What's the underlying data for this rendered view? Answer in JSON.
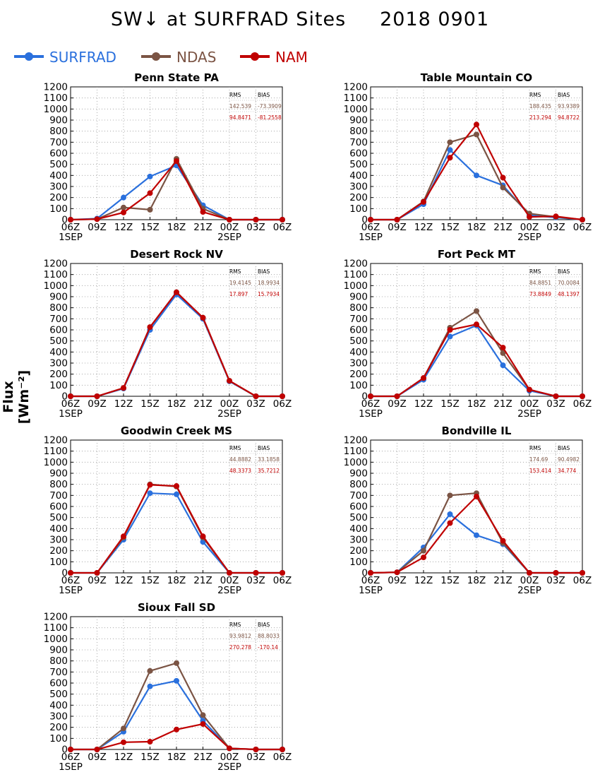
{
  "title": "SW↓ at SURFRAD Sites     2018 0901",
  "ylabel": "Flux [Wm⁻²]",
  "legend": [
    {
      "name": "SURFRAD",
      "color": "#2a70dd"
    },
    {
      "name": "NDAS",
      "color": "#7b5444"
    },
    {
      "name": "NAM",
      "color": "#c00000"
    }
  ],
  "chart_data": [
    {
      "type": "line",
      "title": "Penn State PA",
      "x": [
        "06Z",
        "09Z",
        "12Z",
        "15Z",
        "18Z",
        "21Z",
        "00Z",
        "03Z",
        "06Z"
      ],
      "date_labels": [
        "1SEP",
        "2SEP"
      ],
      "ylim": [
        0,
        1200
      ],
      "yticks": [
        0,
        100,
        200,
        300,
        400,
        500,
        600,
        700,
        800,
        900,
        1000,
        1100,
        1200
      ],
      "grid": true,
      "stats": {
        "headers": [
          "RMS",
          "BIAS"
        ],
        "NDAS": [
          "142.539",
          "-73.3909"
        ],
        "NAM": [
          "94.8471",
          "-81.2558"
        ]
      },
      "series": [
        {
          "name": "SURFRAD",
          "values": [
            0,
            10,
            200,
            390,
            490,
            130,
            0,
            0,
            0
          ]
        },
        {
          "name": "NDAS",
          "values": [
            0,
            5,
            110,
            90,
            550,
            100,
            0,
            0,
            0
          ]
        },
        {
          "name": "NAM",
          "values": [
            0,
            5,
            65,
            240,
            530,
            70,
            0,
            0,
            0
          ]
        }
      ]
    },
    {
      "type": "line",
      "title": "Table Mountain CO",
      "x": [
        "06Z",
        "09Z",
        "12Z",
        "15Z",
        "18Z",
        "21Z",
        "00Z",
        "03Z",
        "06Z"
      ],
      "date_labels": [
        "1SEP",
        "2SEP"
      ],
      "ylim": [
        0,
        1200
      ],
      "yticks": [
        0,
        100,
        200,
        300,
        400,
        500,
        600,
        700,
        800,
        900,
        1000,
        1100,
        1200
      ],
      "grid": true,
      "stats": {
        "headers": [
          "RMS",
          "BIAS"
        ],
        "NDAS": [
          "188.435",
          "93.9389"
        ],
        "NAM": [
          "213.294",
          "94.8722"
        ]
      },
      "series": [
        {
          "name": "SURFRAD",
          "values": [
            0,
            0,
            140,
            630,
            400,
            310,
            40,
            20,
            0
          ]
        },
        {
          "name": "NDAS",
          "values": [
            0,
            0,
            165,
            700,
            770,
            290,
            55,
            25,
            0
          ]
        },
        {
          "name": "NAM",
          "values": [
            0,
            0,
            160,
            560,
            860,
            380,
            25,
            30,
            0
          ]
        }
      ]
    },
    {
      "type": "line",
      "title": "Desert Rock NV",
      "x": [
        "06Z",
        "09Z",
        "12Z",
        "15Z",
        "18Z",
        "21Z",
        "00Z",
        "03Z",
        "06Z"
      ],
      "date_labels": [
        "1SEP",
        "2SEP"
      ],
      "ylim": [
        0,
        1200
      ],
      "yticks": [
        0,
        100,
        200,
        300,
        400,
        500,
        600,
        700,
        800,
        900,
        1000,
        1100,
        1200
      ],
      "grid": true,
      "stats": {
        "headers": [
          "RMS",
          "BIAS"
        ],
        "NDAS": [
          "19.4145",
          "18.9934"
        ],
        "NAM": [
          "17.897",
          "15.7934"
        ]
      },
      "series": [
        {
          "name": "SURFRAD",
          "values": [
            0,
            0,
            70,
            600,
            920,
            700,
            135,
            0,
            0
          ]
        },
        {
          "name": "NDAS",
          "values": [
            0,
            0,
            75,
            625,
            940,
            710,
            140,
            0,
            0
          ]
        },
        {
          "name": "NAM",
          "values": [
            0,
            0,
            75,
            625,
            940,
            710,
            140,
            0,
            0
          ]
        }
      ]
    },
    {
      "type": "line",
      "title": "Fort Peck MT",
      "x": [
        "06Z",
        "09Z",
        "12Z",
        "15Z",
        "18Z",
        "21Z",
        "00Z",
        "03Z",
        "06Z"
      ],
      "date_labels": [
        "1SEP",
        "2SEP"
      ],
      "ylim": [
        0,
        1200
      ],
      "yticks": [
        0,
        100,
        200,
        300,
        400,
        500,
        600,
        700,
        800,
        900,
        1000,
        1100,
        1200
      ],
      "grid": true,
      "stats": {
        "headers": [
          "RMS",
          "BIAS"
        ],
        "NDAS": [
          "84.8851",
          "70.0084"
        ],
        "NAM": [
          "73.8849",
          "48.1397"
        ]
      },
      "series": [
        {
          "name": "SURFRAD",
          "values": [
            0,
            0,
            150,
            540,
            640,
            280,
            50,
            0,
            0
          ]
        },
        {
          "name": "NDAS",
          "values": [
            0,
            0,
            165,
            620,
            770,
            390,
            60,
            0,
            0
          ]
        },
        {
          "name": "NAM",
          "values": [
            0,
            0,
            165,
            600,
            650,
            440,
            60,
            0,
            0
          ]
        }
      ]
    },
    {
      "type": "line",
      "title": "Goodwin Creek MS",
      "x": [
        "06Z",
        "09Z",
        "12Z",
        "15Z",
        "18Z",
        "21Z",
        "00Z",
        "03Z",
        "06Z"
      ],
      "date_labels": [
        "1SEP",
        "2SEP"
      ],
      "ylim": [
        0,
        1200
      ],
      "yticks": [
        0,
        100,
        200,
        300,
        400,
        500,
        600,
        700,
        800,
        900,
        1000,
        1100,
        1200
      ],
      "grid": true,
      "stats": {
        "headers": [
          "RMS",
          "BIAS"
        ],
        "NDAS": [
          "44.8882",
          "33.1858"
        ],
        "NAM": [
          "48.3373",
          "35.7212"
        ]
      },
      "series": [
        {
          "name": "SURFRAD",
          "values": [
            0,
            0,
            300,
            720,
            710,
            280,
            0,
            0,
            0
          ]
        },
        {
          "name": "NDAS",
          "values": [
            0,
            0,
            320,
            800,
            780,
            320,
            0,
            0,
            0
          ]
        },
        {
          "name": "NAM",
          "values": [
            0,
            0,
            330,
            795,
            785,
            330,
            0,
            0,
            0
          ]
        }
      ]
    },
    {
      "type": "line",
      "title": "Bondville IL",
      "x": [
        "06Z",
        "09Z",
        "12Z",
        "15Z",
        "18Z",
        "21Z",
        "00Z",
        "03Z",
        "06Z"
      ],
      "date_labels": [
        "1SEP",
        "2SEP"
      ],
      "ylim": [
        0,
        1200
      ],
      "yticks": [
        0,
        100,
        200,
        300,
        400,
        500,
        600,
        700,
        800,
        900,
        1000,
        1100,
        1200
      ],
      "grid": true,
      "stats": {
        "headers": [
          "RMS",
          "BIAS"
        ],
        "NDAS": [
          "174.69",
          "90.4982"
        ],
        "NAM": [
          "153.414",
          "34.774"
        ]
      },
      "series": [
        {
          "name": "SURFRAD",
          "values": [
            0,
            5,
            230,
            530,
            340,
            260,
            0,
            0,
            0
          ]
        },
        {
          "name": "NDAS",
          "values": [
            0,
            5,
            200,
            700,
            720,
            270,
            0,
            0,
            0
          ]
        },
        {
          "name": "NAM",
          "values": [
            0,
            5,
            140,
            450,
            690,
            290,
            0,
            0,
            0
          ]
        }
      ]
    },
    {
      "type": "line",
      "title": "Sioux Fall SD",
      "x": [
        "06Z",
        "09Z",
        "12Z",
        "15Z",
        "18Z",
        "21Z",
        "00Z",
        "03Z",
        "06Z"
      ],
      "date_labels": [
        "1SEP",
        "2SEP"
      ],
      "ylim": [
        0,
        1200
      ],
      "yticks": [
        0,
        100,
        200,
        300,
        400,
        500,
        600,
        700,
        800,
        900,
        1000,
        1100,
        1200
      ],
      "grid": true,
      "stats": {
        "headers": [
          "RMS",
          "BIAS"
        ],
        "NDAS": [
          "93.9812",
          "88.8033"
        ],
        "NAM": [
          "270.278",
          "-170.14"
        ]
      },
      "series": [
        {
          "name": "SURFRAD",
          "values": [
            0,
            0,
            160,
            570,
            620,
            260,
            10,
            0,
            0
          ]
        },
        {
          "name": "NDAS",
          "values": [
            0,
            0,
            190,
            710,
            780,
            310,
            10,
            0,
            0
          ]
        },
        {
          "name": "NAM",
          "values": [
            0,
            0,
            65,
            70,
            180,
            230,
            10,
            0,
            0
          ]
        }
      ]
    }
  ]
}
